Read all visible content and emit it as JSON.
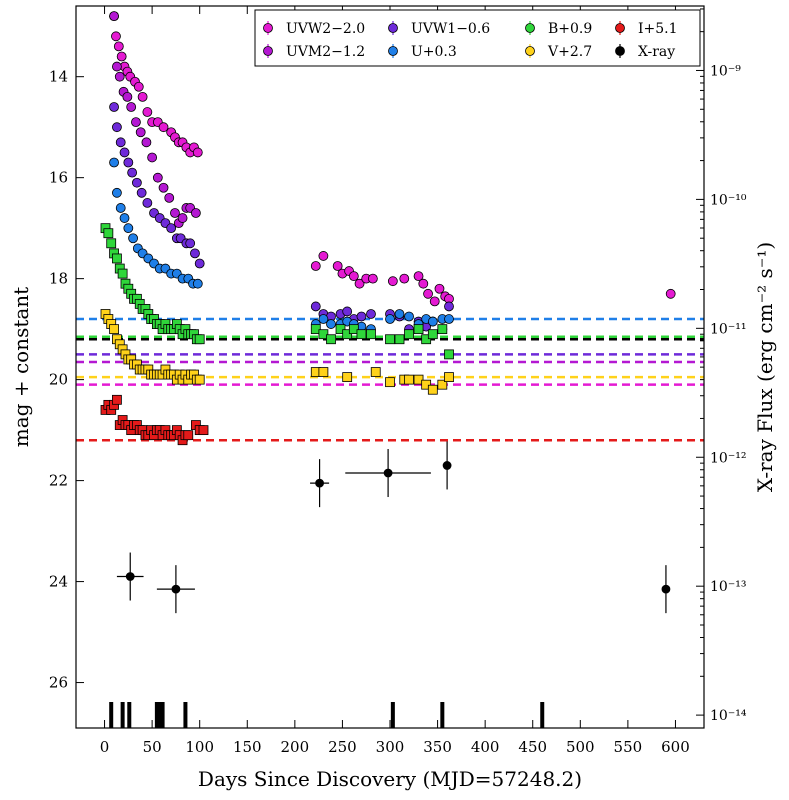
{
  "chart_data": {
    "type": "scatter",
    "title": "",
    "xlabel": "Days Since Discovery (MJD=57248.2)",
    "ylabel": "mag + constant",
    "y2label": "X-ray Flux (erg cm⁻² s⁻¹)",
    "xlim": [
      -30,
      630
    ],
    "ylim": [
      26.9,
      12.6
    ],
    "y2lim_log10": [
      -14.1,
      -8.5
    ],
    "x_ticks": [
      0,
      50,
      100,
      150,
      200,
      250,
      300,
      350,
      400,
      450,
      500,
      550,
      600
    ],
    "x_tick_labels": [
      "0",
      "50",
      "100",
      "150",
      "200",
      "250",
      "300",
      "350",
      "400",
      "450",
      "500",
      "550",
      "600"
    ],
    "y_ticks": [
      14,
      16,
      18,
      20,
      22,
      24,
      26
    ],
    "y_tick_labels": [
      "14",
      "16",
      "18",
      "20",
      "22",
      "24",
      "26"
    ],
    "y2_ticks_log10": [
      -9,
      -10,
      -11,
      -12,
      -13,
      -14
    ],
    "y2_tick_labels": [
      "10⁻⁹",
      "10⁻¹⁰",
      "10⁻¹¹",
      "10⁻¹²",
      "10⁻¹³",
      "10⁻¹⁴"
    ],
    "legend_position": "top-right",
    "series": [
      {
        "name": "UVW2−2.0",
        "color": "#e41ad2",
        "marker": "circle",
        "x": [
          10,
          12,
          15,
          18,
          21,
          24,
          27,
          32,
          36,
          40,
          45,
          50,
          56,
          62,
          70,
          74,
          78,
          82,
          86,
          90,
          94,
          98,
          222,
          230,
          245,
          250,
          257,
          262,
          268,
          275,
          282,
          303,
          315,
          330,
          335,
          340,
          347,
          352,
          358,
          362,
          595
        ],
        "y": [
          12.8,
          13.2,
          13.4,
          13.6,
          13.8,
          13.9,
          14.0,
          14.1,
          14.2,
          14.4,
          14.7,
          14.9,
          14.9,
          15.0,
          15.1,
          15.2,
          15.3,
          15.3,
          15.4,
          15.5,
          15.4,
          15.5,
          17.75,
          17.55,
          17.75,
          17.9,
          17.85,
          17.95,
          18.1,
          18.0,
          18.0,
          18.05,
          18.0,
          17.95,
          18.1,
          18.3,
          18.45,
          18.2,
          18.35,
          18.4,
          18.3
        ]
      },
      {
        "name": "UVM2−1.2",
        "color": "#b418d2",
        "marker": "circle",
        "x": [
          10,
          13,
          16,
          20,
          24,
          28,
          33,
          38,
          44,
          50,
          56,
          62,
          68,
          74,
          78,
          82,
          86,
          90,
          96
        ],
        "y": [
          12.8,
          13.8,
          14.0,
          14.3,
          14.4,
          14.6,
          14.9,
          15.1,
          15.3,
          15.6,
          16.0,
          16.2,
          16.4,
          16.7,
          16.9,
          16.8,
          16.6,
          16.6,
          16.7
        ]
      },
      {
        "name": "UVW1−0.6",
        "color": "#6e2ad9",
        "marker": "circle",
        "x": [
          10,
          13,
          17,
          21,
          25,
          29,
          34,
          39,
          45,
          52,
          58,
          64,
          70,
          76,
          80,
          86,
          90,
          95,
          100,
          222,
          230,
          238,
          248,
          255,
          262,
          270,
          280,
          300,
          310,
          320,
          330,
          338,
          345,
          355,
          362
        ],
        "y": [
          14.6,
          15.0,
          15.3,
          15.5,
          15.7,
          15.9,
          16.1,
          16.3,
          16.5,
          16.7,
          16.8,
          16.9,
          17.0,
          17.2,
          17.2,
          17.3,
          17.3,
          17.5,
          17.7,
          18.55,
          18.7,
          18.75,
          18.7,
          18.65,
          18.8,
          18.75,
          18.7,
          18.7,
          18.75,
          19.0,
          18.85,
          18.95,
          18.85,
          19.0,
          18.55
        ]
      },
      {
        "name": "U+0.3",
        "color": "#1f7fe8",
        "marker": "circle",
        "x": [
          10,
          13,
          17,
          21,
          25,
          30,
          35,
          40,
          46,
          52,
          58,
          64,
          70,
          76,
          82,
          88,
          93,
          98,
          222,
          230,
          238,
          248,
          255,
          262,
          270,
          280,
          300,
          310,
          320,
          330,
          338,
          345,
          355,
          362
        ],
        "y": [
          15.7,
          16.3,
          16.6,
          16.8,
          17.0,
          17.2,
          17.4,
          17.5,
          17.6,
          17.7,
          17.8,
          17.8,
          17.9,
          17.9,
          18.0,
          18.0,
          18.1,
          18.1,
          18.9,
          18.8,
          18.9,
          18.9,
          18.85,
          18.9,
          18.95,
          19.0,
          18.8,
          18.7,
          18.75,
          18.9,
          18.8,
          18.85,
          18.8,
          18.8
        ]
      },
      {
        "name": "B+0.9",
        "color": "#2fd63a",
        "marker": "square",
        "x": [
          1,
          4,
          7,
          10,
          13,
          16,
          19,
          22,
          25,
          28,
          31,
          34,
          37,
          40,
          43,
          46,
          49,
          52,
          55,
          58,
          61,
          64,
          67,
          70,
          73,
          76,
          79,
          82,
          85,
          88,
          91,
          94,
          97,
          100,
          222,
          230,
          238,
          248,
          255,
          262,
          270,
          280,
          300,
          310,
          320,
          330,
          338,
          345,
          355,
          362
        ],
        "y": [
          17.0,
          17.1,
          17.3,
          17.5,
          17.6,
          17.8,
          17.9,
          18.1,
          18.2,
          18.3,
          18.4,
          18.4,
          18.5,
          18.6,
          18.6,
          18.7,
          18.8,
          18.8,
          18.9,
          18.9,
          19.0,
          18.9,
          19.0,
          19.0,
          19.0,
          18.9,
          19.0,
          19.1,
          19.0,
          19.1,
          19.1,
          19.1,
          19.2,
          19.2,
          19.0,
          19.1,
          19.2,
          19.0,
          19.1,
          19.0,
          19.1,
          19.1,
          19.2,
          19.2,
          19.1,
          19.0,
          19.2,
          19.1,
          19.0,
          19.5
        ]
      },
      {
        "name": "V+2.7",
        "color": "#ffd21a",
        "marker": "square",
        "x": [
          1,
          4,
          7,
          10,
          13,
          16,
          19,
          22,
          25,
          28,
          31,
          34,
          37,
          40,
          43,
          46,
          49,
          52,
          55,
          58,
          61,
          64,
          67,
          70,
          73,
          76,
          79,
          82,
          85,
          88,
          91,
          94,
          97,
          100,
          222,
          230,
          255,
          285,
          300,
          315,
          320,
          330,
          338,
          345,
          355,
          362
        ],
        "y": [
          18.7,
          18.8,
          18.9,
          19.0,
          19.2,
          19.3,
          19.4,
          19.5,
          19.6,
          19.6,
          19.7,
          19.7,
          19.8,
          19.8,
          19.8,
          19.8,
          19.9,
          19.9,
          19.9,
          19.9,
          19.9,
          19.8,
          19.9,
          19.9,
          19.9,
          20.0,
          19.9,
          20.0,
          19.9,
          20.0,
          19.9,
          19.9,
          20.0,
          20.0,
          19.85,
          19.85,
          19.95,
          19.85,
          20.05,
          20.0,
          20.0,
          20.0,
          20.1,
          20.2,
          20.1,
          19.95
        ]
      },
      {
        "name": "I+5.1",
        "color": "#e41a1a",
        "marker": "square",
        "x": [
          1,
          4,
          7,
          10,
          13,
          16,
          19,
          22,
          25,
          28,
          31,
          34,
          37,
          40,
          43,
          46,
          49,
          52,
          55,
          58,
          61,
          64,
          67,
          70,
          73,
          76,
          79,
          82,
          85,
          88,
          96,
          100,
          104
        ],
        "y": [
          20.6,
          20.5,
          20.6,
          20.5,
          20.4,
          20.9,
          20.8,
          20.9,
          20.9,
          21.0,
          20.9,
          20.9,
          21.0,
          21.0,
          21.1,
          21.1,
          21.0,
          21.1,
          21.0,
          21.0,
          21.1,
          21.0,
          21.1,
          21.1,
          21.1,
          21.0,
          21.1,
          21.2,
          21.1,
          21.1,
          20.9,
          21.0,
          21.0
        ]
      },
      {
        "name": "X-ray",
        "color": "#000000",
        "marker": "circle",
        "x": [
          27,
          75,
          226,
          298,
          360,
          590
        ],
        "xerr": [
          14,
          20,
          10,
          45,
          3,
          3
        ],
        "y": [
          23.9,
          24.15,
          22.05,
          21.85,
          21.7,
          24.15
        ]
      }
    ],
    "reference_levels": [
      {
        "series": "U+0.3",
        "y": 18.8
      },
      {
        "series": "B+0.9",
        "y": 19.15
      },
      {
        "series": "X-ray",
        "y": 19.2
      },
      {
        "series": "UVW1−0.6",
        "y": 19.5
      },
      {
        "series": "UVM2−1.2",
        "y": 19.65
      },
      {
        "series": "V+2.7",
        "y": 19.95
      },
      {
        "series": "UVW2−2.0",
        "y": 20.1
      },
      {
        "series": "I+5.1",
        "y": 21.2
      }
    ],
    "observation_epochs": [
      7,
      19,
      26,
      55,
      58,
      61,
      85,
      303,
      355,
      460
    ]
  }
}
